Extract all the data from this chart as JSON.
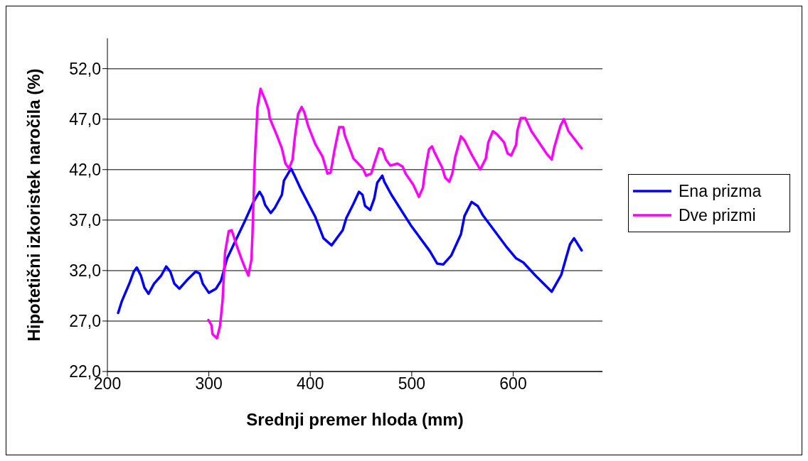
{
  "chart_data": {
    "type": "line",
    "xlabel": "Srednji premer hloda (mm)",
    "ylabel": "Hipotetični izkoristek naročila (%)",
    "xlim": [
      200,
      688
    ],
    "xticks": [
      200,
      300,
      400,
      500,
      600
    ],
    "ylim": [
      22,
      55
    ],
    "yticks": [
      {
        "value": 22,
        "label": "22,0"
      },
      {
        "value": 27,
        "label": "27,0"
      },
      {
        "value": 32,
        "label": "32,0"
      },
      {
        "value": 37,
        "label": "37,0"
      },
      {
        "value": 42,
        "label": "42,0"
      },
      {
        "value": 47,
        "label": "47,0"
      },
      {
        "value": 52,
        "label": "52,0"
      }
    ],
    "grid": "y",
    "legend": "right",
    "marker": "none",
    "line_style": "solid",
    "series": [
      {
        "name": "Ena prizma",
        "color": "#0000ff",
        "x": [
          210.6,
          214,
          222,
          226,
          229,
          233,
          236.5,
          240.5,
          246,
          253,
          258,
          262,
          266,
          271,
          278,
          287,
          291,
          294,
          300,
          307,
          312,
          318,
          327,
          335,
          344,
          350,
          353,
          355.5,
          361,
          365,
          372,
          374,
          381,
          384,
          391,
          405,
          413,
          421,
          432,
          435.5,
          442.5,
          448,
          451.5,
          454,
          459,
          463,
          466,
          471,
          473,
          480,
          499,
          518,
          525,
          531,
          539,
          548.5,
          552,
          559,
          565,
          570,
          593,
          603,
          610,
          622,
          638,
          647.5,
          652,
          656,
          660,
          667.5
        ],
        "values": [
          27.8,
          28.9,
          30.8,
          31.9,
          32.3,
          31.5,
          30.3,
          29.7,
          30.7,
          31.5,
          32.4,
          31.9,
          30.7,
          30.2,
          31,
          31.9,
          31.7,
          30.7,
          29.8,
          30.2,
          31,
          33.2,
          35.1,
          36.8,
          38.8,
          39.8,
          39.3,
          38.5,
          37.7,
          38.2,
          39.5,
          40.9,
          42.1,
          41.5,
          40,
          37.3,
          35.2,
          34.5,
          36,
          37.2,
          38.6,
          39.8,
          39.5,
          38.4,
          38,
          39.1,
          40.7,
          41.4,
          40.8,
          39.5,
          36.5,
          33.9,
          32.7,
          32.6,
          33.5,
          35.6,
          37.4,
          38.8,
          38.4,
          37.5,
          34.4,
          33.2,
          32.8,
          31.5,
          29.9,
          31.6,
          33.2,
          34.6,
          35.2,
          34
        ]
      },
      {
        "name": "Dve prizmi",
        "color": "#ff00ff",
        "x": [
          299.6,
          302.5,
          303.7,
          308,
          311,
          313.5,
          316,
          319.6,
          322.5,
          327,
          332,
          335.5,
          339,
          342,
          343,
          345.5,
          348,
          351,
          355.5,
          359,
          360,
          367,
          372,
          375.5,
          379,
          382.5,
          385,
          388,
          391.5,
          394,
          398,
          405,
          412,
          417,
          420,
          424,
          428.5,
          432.5,
          434,
          442.5,
          452,
          455,
          460,
          464,
          468,
          471,
          474.5,
          479,
          486,
          491,
          494,
          501.5,
          507,
          511,
          513,
          517,
          520,
          522.5,
          530,
          533,
          537,
          540,
          543,
          548.5,
          552,
          559,
          567.5,
          573,
          575.5,
          580,
          584,
          591,
          594.5,
          598,
          603,
          604,
          607.5,
          612,
          618,
          633.5,
          638,
          640.5,
          646.5,
          650,
          654.5,
          667.5
        ],
        "values": [
          27.1,
          26.6,
          25.7,
          25.3,
          26.5,
          29,
          33.8,
          35.9,
          36,
          34.6,
          33.2,
          32.3,
          31.5,
          33.1,
          35.6,
          43.5,
          48.2,
          50,
          48.9,
          47.9,
          47.1,
          45.4,
          44.1,
          42.6,
          42.1,
          43,
          45.4,
          47.5,
          48.2,
          47.7,
          46.3,
          44.5,
          43.3,
          41.6,
          41.7,
          44,
          46.2,
          46.2,
          45.4,
          43.1,
          42.1,
          41.4,
          41.6,
          42.9,
          44.1,
          44,
          43,
          42.4,
          42.6,
          42.3,
          41.6,
          40.5,
          39.3,
          40.2,
          41.8,
          44,
          44.3,
          43.7,
          42.2,
          41.2,
          40.8,
          41.6,
          43.3,
          45.3,
          44.9,
          43.5,
          42,
          43.1,
          44.7,
          45.8,
          45.5,
          44.7,
          43.6,
          43.4,
          44.5,
          45.8,
          47.1,
          47.1,
          45.8,
          43.5,
          43,
          44.2,
          46.3,
          47,
          45.8,
          44.1
        ]
      }
    ]
  }
}
